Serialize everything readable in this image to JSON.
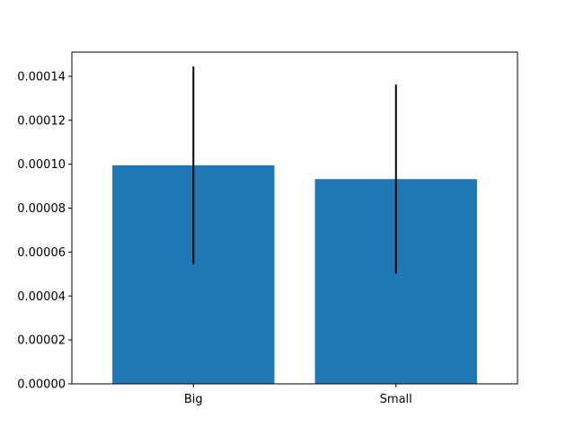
{
  "chart_data": {
    "type": "bar",
    "categories": [
      "Big",
      "Small"
    ],
    "values": [
      9.95e-05,
      9.32e-05
    ],
    "errors": [
      4.5e-05,
      4.3e-05
    ],
    "title": "",
    "xlabel": "",
    "ylabel": "",
    "ylim": [
      0,
      0.000151
    ],
    "yticks": [
      0,
      2e-05,
      4e-05,
      6e-05,
      8e-05,
      0.0001,
      0.00012,
      0.00014
    ],
    "ytick_labels": [
      "0.00000",
      "0.00002",
      "0.00004",
      "0.00006",
      "0.00008",
      "0.00010",
      "0.00012",
      "0.00014"
    ],
    "grid": false,
    "bar_color": "#1f77b4",
    "error_color": "#000000"
  }
}
